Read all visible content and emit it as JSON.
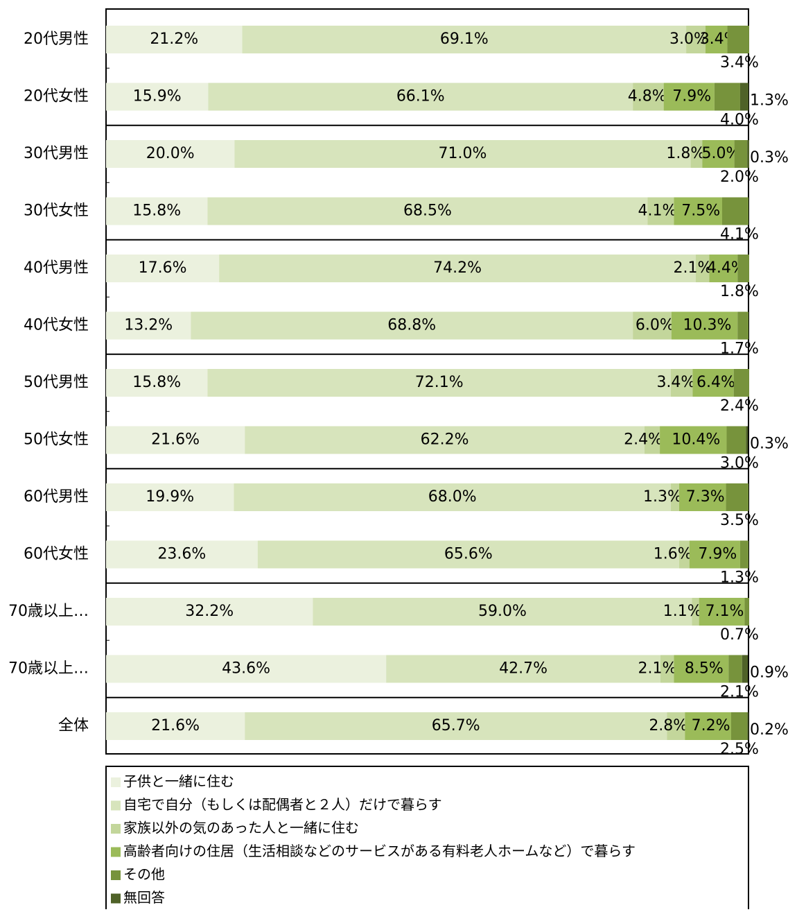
{
  "chart_data": {
    "type": "stacked-barh",
    "categories": [
      "20代男性",
      "20代女性",
      "30代男性",
      "30代女性",
      "40代男性",
      "40代女性",
      "50代男性",
      "50代女性",
      "60代男性",
      "60代女性",
      "70歳以上…",
      "70歳以上…",
      "全体"
    ],
    "xlim": [
      0,
      100
    ],
    "series": [
      {
        "name": "子供と一緒に住む",
        "color": "#ebf1de",
        "values": [
          21.2,
          15.9,
          20.0,
          15.8,
          17.6,
          13.2,
          15.8,
          21.6,
          19.9,
          23.6,
          32.2,
          43.6,
          21.6
        ],
        "value_labels": [
          "21.2%",
          "15.9%",
          "20.0%",
          "15.8%",
          "17.6%",
          "13.2%",
          "15.8%",
          "21.6%",
          "19.9%",
          "23.6%",
          "32.2%",
          "43.6%",
          "21.6%"
        ]
      },
      {
        "name": "自宅で自分（もしくは配偶者と２人）だけで暮らす",
        "color": "#d7e4bc",
        "values": [
          69.1,
          66.1,
          71.0,
          68.5,
          74.2,
          68.8,
          72.1,
          62.2,
          68.0,
          65.6,
          59.0,
          42.7,
          65.7
        ],
        "value_labels": [
          "69.1%",
          "66.1%",
          "71.0%",
          "68.5%",
          "74.2%",
          "68.8%",
          "72.1%",
          "62.2%",
          "68.0%",
          "65.6%",
          "59.0%",
          "42.7%",
          "65.7%"
        ]
      },
      {
        "name": "家族以外の気のあった人と一緒に住む",
        "color": "#c3d69b",
        "values": [
          3.0,
          4.8,
          1.8,
          4.1,
          2.1,
          6.0,
          3.4,
          2.4,
          1.3,
          1.6,
          1.1,
          2.1,
          2.8
        ],
        "value_labels": [
          "3.0%",
          "4.8%",
          "1.8%",
          "4.1%",
          "2.1%",
          "6.0%",
          "3.4%",
          "2.4%",
          "1.3%",
          "1.6%",
          "1.1%",
          "2.1%",
          "2.8%"
        ]
      },
      {
        "name": "高齢者向けの住居（生活相談などのサービスがある有料老人ホームなど）で暮らす",
        "color": "#9bbb59",
        "values": [
          3.4,
          7.9,
          5.0,
          7.5,
          4.4,
          10.3,
          6.4,
          10.4,
          7.3,
          7.9,
          7.1,
          8.5,
          7.2
        ],
        "value_labels": [
          "3.4%",
          "7.9%",
          "5.0%",
          "7.5%",
          "4.4%",
          "10.3%",
          "6.4%",
          "10.4%",
          "7.3%",
          "7.9%",
          "7.1%",
          "8.5%",
          "7.2%"
        ]
      },
      {
        "name": "その他",
        "color": "#77933c",
        "values": [
          3.4,
          4.0,
          2.0,
          4.1,
          1.8,
          1.7,
          2.4,
          3.0,
          3.5,
          1.3,
          0.7,
          2.1,
          2.5
        ],
        "value_labels": [
          "3.4%",
          "4.0%",
          "2.0%",
          "4.1%",
          "1.8%",
          "1.7%",
          "2.4%",
          "3.0%",
          "3.5%",
          "1.3%",
          "0.7%",
          "2.1%",
          "2.5%"
        ]
      },
      {
        "name": "無回答",
        "color": "#4f6228",
        "values": [
          null,
          1.3,
          0.3,
          null,
          null,
          null,
          null,
          0.3,
          null,
          null,
          null,
          0.9,
          0.2
        ],
        "value_labels": [
          null,
          "1.3%",
          "0.3%",
          null,
          null,
          null,
          null,
          "0.3%",
          null,
          null,
          null,
          "0.9%",
          "0.2%"
        ]
      }
    ]
  }
}
